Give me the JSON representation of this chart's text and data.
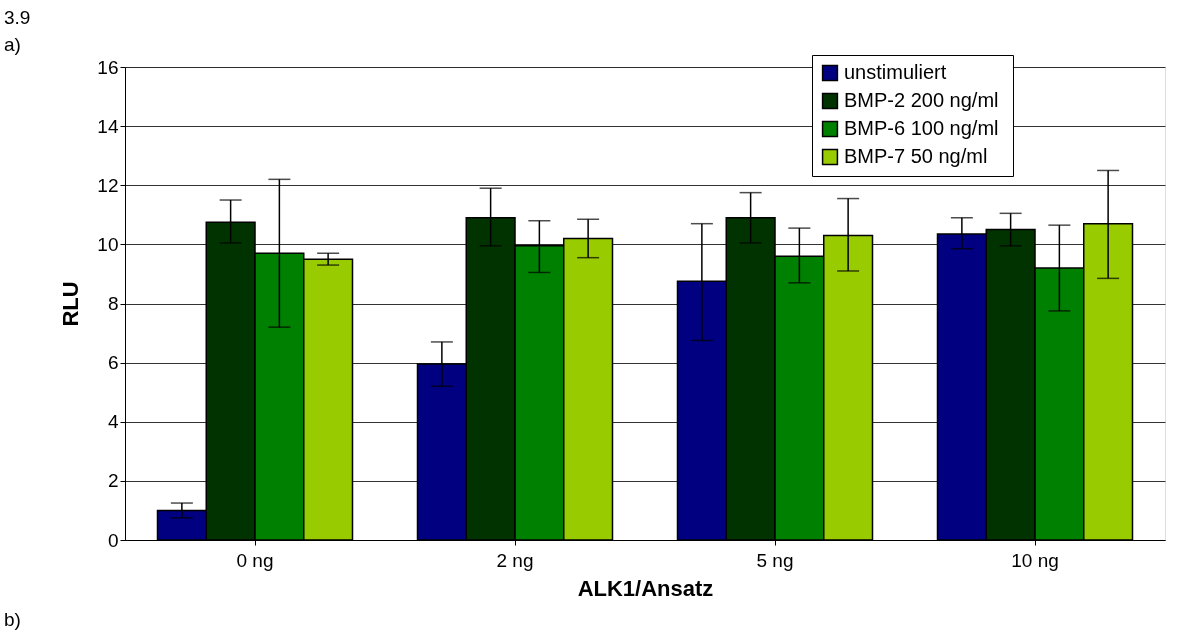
{
  "chart_data": {
    "type": "bar",
    "categories": [
      "0 ng",
      "2 ng",
      "5 ng",
      "10 ng"
    ],
    "xlabel": "ALK1/Ansatz",
    "ylabel": "RLU",
    "annotations": [
      "3.9",
      "a)",
      "b)"
    ],
    "ylim": [
      0,
      16
    ],
    "yticks": [
      0,
      2,
      4,
      6,
      8,
      10,
      12,
      14,
      16
    ],
    "grid": "y",
    "legend": "top right",
    "series": [
      {
        "name": "unstimuliert",
        "color": "#000080",
        "values": [
          1.0,
          5.95,
          8.75,
          10.35
        ],
        "errors": [
          [
            0.75,
            1.25
          ],
          [
            5.2,
            6.7
          ],
          [
            6.75,
            10.7
          ],
          [
            9.85,
            10.9
          ]
        ]
      },
      {
        "name": "BMP-2  200 ng/ml",
        "color": "#003300",
        "values": [
          10.75,
          10.9,
          10.9,
          10.5
        ],
        "errors": [
          [
            10.05,
            11.5
          ],
          [
            9.95,
            11.9
          ],
          [
            10.05,
            11.75
          ],
          [
            9.95,
            11.05
          ]
        ]
      },
      {
        "name": "BMP-6  100 ng/ml",
        "color": "#008000",
        "values": [
          9.7,
          9.95,
          9.6,
          9.2
        ],
        "errors": [
          [
            7.2,
            12.2
          ],
          [
            9.05,
            10.8
          ],
          [
            8.7,
            10.55
          ],
          [
            7.75,
            10.65
          ]
        ]
      },
      {
        "name": "BMP-7  50 ng/ml",
        "color": "#99cc00",
        "values": [
          9.5,
          10.2,
          10.3,
          10.7
        ],
        "errors": [
          [
            9.3,
            9.7
          ],
          [
            9.55,
            10.85
          ],
          [
            9.1,
            11.55
          ],
          [
            8.85,
            12.5
          ]
        ]
      }
    ]
  }
}
